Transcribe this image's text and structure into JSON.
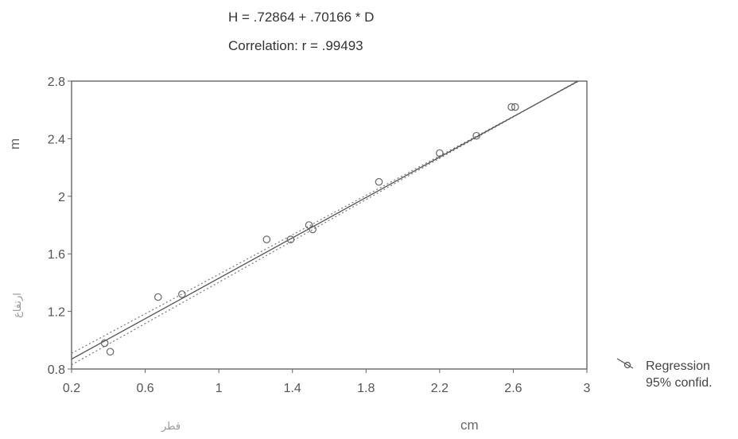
{
  "chart_data": {
    "type": "scatter",
    "title": "H = .72864 + .70166 * D",
    "subtitle": "Correlation: r = .99493",
    "xlabel": "cm",
    "xlabel_secondary": "قطر",
    "ylabel": "m",
    "ylabel_secondary": "ارتفاع",
    "xlim": [
      0.2,
      3
    ],
    "ylim": [
      0.8,
      2.8
    ],
    "xticks": [
      0.2,
      0.6,
      1,
      1.4,
      1.8,
      2.2,
      2.6,
      3
    ],
    "xtick_labels": [
      "0.2",
      "0.6",
      "1",
      "1.4",
      "1.8",
      "2.2",
      "2.6",
      "3"
    ],
    "yticks": [
      0.8,
      1.2,
      1.6,
      2,
      2.4,
      2.8
    ],
    "ytick_labels": [
      "0.8",
      "1.2",
      "1.6",
      "2",
      "2.4",
      "2.8"
    ],
    "grid": false,
    "legend_position": "right",
    "regression": {
      "intercept": 0.72864,
      "slope": 0.70166,
      "confidence_offset": 0.04
    },
    "points": [
      {
        "x": 0.38,
        "y": 0.98
      },
      {
        "x": 0.41,
        "y": 0.92
      },
      {
        "x": 0.67,
        "y": 1.3
      },
      {
        "x": 0.8,
        "y": 1.32
      },
      {
        "x": 1.26,
        "y": 1.7
      },
      {
        "x": 1.39,
        "y": 1.7
      },
      {
        "x": 1.49,
        "y": 1.8
      },
      {
        "x": 1.51,
        "y": 1.77
      },
      {
        "x": 1.87,
        "y": 2.1
      },
      {
        "x": 2.2,
        "y": 2.3
      },
      {
        "x": 2.4,
        "y": 2.42
      },
      {
        "x": 2.59,
        "y": 2.62
      },
      {
        "x": 2.61,
        "y": 2.62
      }
    ],
    "legend": [
      {
        "label": "Regression",
        "style": "line-with-marker"
      },
      {
        "label": "95% confid.",
        "style": "dotted"
      }
    ],
    "colors": {
      "axis": "#666666",
      "regression": "#555555",
      "confidence": "#777777",
      "point": "#666666"
    }
  }
}
